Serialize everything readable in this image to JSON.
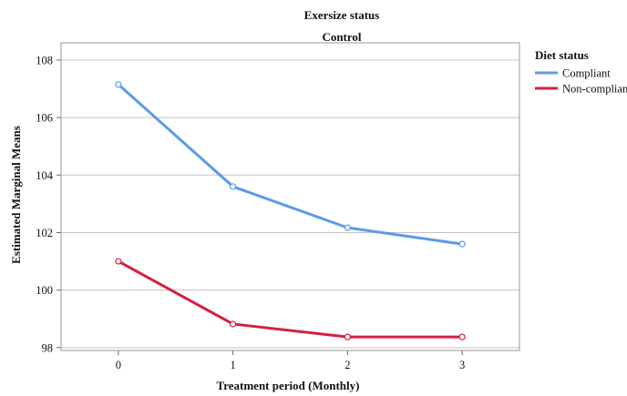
{
  "chart_data": {
    "type": "line",
    "title": "Exersize status",
    "subtitle": "Control",
    "xlabel": "Treatment period (Monthly)",
    "ylabel": "Estimated Marginal Means",
    "categories": [
      "0",
      "1",
      "2",
      "3"
    ],
    "ylim": [
      97.9,
      108.6
    ],
    "yticks": [
      98,
      100,
      102,
      104,
      106,
      108
    ],
    "ytick_labels": [
      "98",
      "100",
      "102",
      "104",
      "106",
      "108"
    ],
    "grid": "horizontal",
    "legend": {
      "title": "Diet status",
      "position": "top-right"
    },
    "series": [
      {
        "name": "Compliant",
        "color": "#5b9be8",
        "values": [
          107.15,
          103.6,
          102.17,
          101.6
        ]
      },
      {
        "name": "Non-compliant",
        "color": "#d51f3f",
        "values": [
          101.0,
          98.82,
          98.37,
          98.37
        ]
      }
    ]
  }
}
